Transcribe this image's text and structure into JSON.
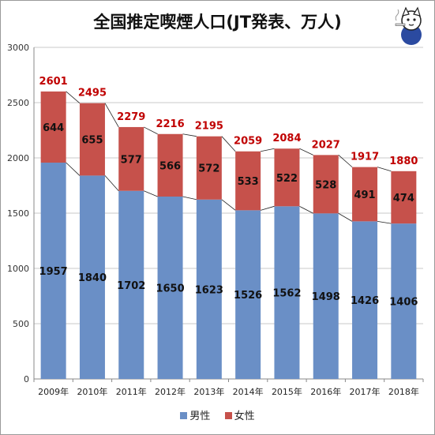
{
  "chart_data": {
    "type": "bar",
    "stacked": true,
    "title": "全国推定喫煙人口(JT発表、万人)",
    "categories": [
      "2009年",
      "2010年",
      "2011年",
      "2012年",
      "2013年",
      "2014年",
      "2015年",
      "2016年",
      "2017年",
      "2018年"
    ],
    "series": [
      {
        "name": "男性",
        "color": "#6a8fc6",
        "values": [
          1957,
          1840,
          1702,
          1650,
          1623,
          1526,
          1562,
          1498,
          1426,
          1406
        ]
      },
      {
        "name": "女性",
        "color": "#c6514b",
        "values": [
          644,
          655,
          577,
          566,
          572,
          533,
          522,
          528,
          491,
          474
        ]
      }
    ],
    "totals": [
      2601,
      2495,
      2279,
      2216,
      2195,
      2059,
      2084,
      2027,
      1917,
      1880
    ],
    "total_label_color": "#c00000",
    "ylim": [
      0,
      3000
    ],
    "yticks": [
      0,
      500,
      1000,
      1500,
      2000,
      2500,
      3000
    ],
    "grid": true,
    "legend_position": "bottom"
  }
}
